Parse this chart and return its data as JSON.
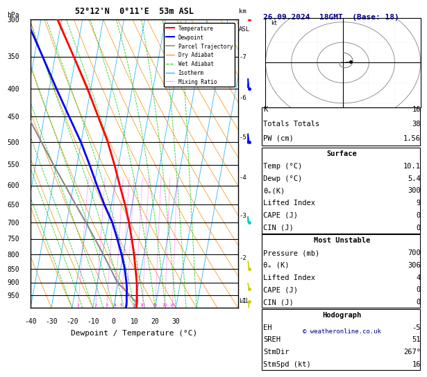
{
  "title_left": "52°12'N  0°11'E  53m ASL",
  "title_right": "26.09.2024  18GMT  (Base: 18)",
  "xlabel": "Dewpoint / Temperature (°C)",
  "ylabel_left": "hPa",
  "background": "#ffffff",
  "plot_bg": "#ffffff",
  "isotherm_color": "#00aaff",
  "dry_adiabat_color": "#ff8800",
  "wet_adiabat_color": "#00cc00",
  "mixing_ratio_color": "#ff00ff",
  "temp_color": "#ff0000",
  "dewpoint_color": "#0000ff",
  "parcel_color": "#888888",
  "pressure_min": 300,
  "pressure_max": 1000,
  "temp_min": -40,
  "temp_max": 35,
  "skew": 25.0,
  "k_index": 16,
  "totals_totals": 38,
  "pw_cm": "1.56",
  "surf_temp": "10.1",
  "surf_dewp": "5.4",
  "surf_theta_e": 300,
  "surf_lifted_index": 9,
  "surf_cape": 0,
  "surf_cin": 0,
  "mu_pressure": 700,
  "mu_theta_e": 306,
  "mu_lifted_index": 4,
  "mu_cape": 0,
  "mu_cin": 0,
  "EH": -5,
  "SREH": 51,
  "StmDir": "267°",
  "StmSpd_kt": 16,
  "lcl_pressure": 970,
  "km_ticks": [
    7,
    6,
    5,
    4,
    3,
    2,
    1
  ],
  "km_pressures": [
    350,
    415,
    490,
    580,
    680,
    810,
    970
  ],
  "mixing_ratio_values": [
    1,
    2,
    3,
    4,
    5,
    6,
    8,
    10,
    15,
    20,
    25
  ],
  "temp_profile_p": [
    1000,
    975,
    950,
    925,
    900,
    850,
    800,
    750,
    700,
    650,
    600,
    550,
    500,
    450,
    400,
    350,
    300
  ],
  "temp_profile_t": [
    11.0,
    10.8,
    10.2,
    9.6,
    9.0,
    7.2,
    5.2,
    2.8,
    0.0,
    -3.4,
    -7.6,
    -12.0,
    -17.2,
    -24.0,
    -31.6,
    -41.0,
    -52.0
  ],
  "dewp_profile_p": [
    1000,
    975,
    950,
    925,
    900,
    850,
    800,
    750,
    700,
    650,
    600,
    550,
    500,
    450,
    400,
    350,
    300
  ],
  "dewp_profile_t": [
    6.0,
    5.8,
    5.2,
    4.8,
    4.0,
    2.0,
    -0.8,
    -4.2,
    -8.0,
    -13.4,
    -18.6,
    -24.0,
    -30.2,
    -38.0,
    -46.6,
    -56.0,
    -67.0
  ],
  "parcel_profile_p": [
    975,
    950,
    925,
    900,
    850,
    800,
    750,
    700,
    650,
    600,
    550,
    500,
    450,
    400,
    350,
    300
  ],
  "parcel_profile_t": [
    10.0,
    6.8,
    3.4,
    -0.4,
    -4.8,
    -9.6,
    -15.0,
    -20.8,
    -27.2,
    -34.0,
    -41.4,
    -49.2,
    -57.8,
    -67.2,
    -77.2,
    -88.0
  ],
  "pressures_plot": [
    300,
    350,
    400,
    450,
    500,
    550,
    600,
    650,
    700,
    750,
    800,
    850,
    900,
    950
  ],
  "temp_ticks": [
    -40,
    -30,
    -20,
    -10,
    0,
    10,
    20,
    30
  ],
  "wind_levels": [
    {
      "p": 300,
      "color": "#ff0000",
      "u": -15,
      "v": 15
    },
    {
      "p": 400,
      "color": "#0000ff",
      "u": -12,
      "v": 8
    },
    {
      "p": 500,
      "color": "#0000ff",
      "u": -10,
      "v": 5
    },
    {
      "p": 700,
      "color": "#00cccc",
      "u": -6,
      "v": 2
    },
    {
      "p": 850,
      "color": "#cccc00",
      "u": -4,
      "v": 2
    },
    {
      "p": 925,
      "color": "#cccc00",
      "u": -3,
      "v": 1
    },
    {
      "p": 975,
      "color": "#cccc00",
      "u": -2,
      "v": -2
    }
  ]
}
